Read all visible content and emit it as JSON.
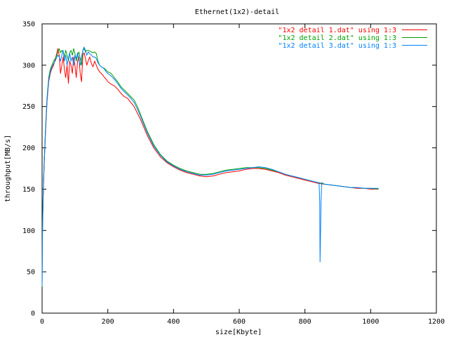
{
  "chart_data": {
    "type": "line",
    "title": "Ethernet(1x2)-detail",
    "xlabel": "size[Kbyte]",
    "ylabel": "throughput[MB/s]",
    "xlim": [
      0,
      1200
    ],
    "ylim": [
      0,
      350
    ],
    "xticks": [
      0,
      200,
      400,
      600,
      800,
      1000,
      1200
    ],
    "yticks": [
      0,
      50,
      100,
      150,
      200,
      250,
      300,
      350
    ],
    "xtick_labels": [
      "0",
      "200",
      "400",
      "600",
      "800",
      "1000",
      "1200"
    ],
    "ytick_labels": [
      "0",
      "50",
      "100",
      "150",
      "200",
      "250",
      "300",
      "350"
    ],
    "grid": false,
    "legend_position": "top-right",
    "series": [
      {
        "name": "\"1x2 detail 1.dat\" using 1:3",
        "color": "#ff0000",
        "x": [
          0,
          1,
          3,
          6,
          10,
          15,
          20,
          25,
          30,
          35,
          40,
          45,
          48,
          52,
          56,
          60,
          64,
          68,
          72,
          76,
          80,
          84,
          88,
          92,
          96,
          100,
          104,
          108,
          112,
          116,
          120,
          124,
          128,
          132,
          136,
          140,
          145,
          150,
          155,
          160,
          165,
          170,
          175,
          180,
          185,
          190,
          195,
          200,
          210,
          220,
          230,
          240,
          250,
          260,
          270,
          280,
          290,
          300,
          320,
          340,
          360,
          380,
          400,
          420,
          440,
          460,
          480,
          500,
          520,
          540,
          560,
          580,
          600,
          620,
          640,
          660,
          680,
          700,
          720,
          740,
          760,
          780,
          800,
          820,
          840,
          860,
          880,
          900,
          920,
          940,
          960,
          980,
          1000,
          1024
        ],
        "y": [
          35,
          95,
          135,
          175,
          215,
          255,
          280,
          290,
          296,
          300,
          307,
          315,
          320,
          312,
          290,
          300,
          310,
          295,
          285,
          300,
          278,
          305,
          300,
          290,
          310,
          300,
          285,
          305,
          310,
          290,
          280,
          312,
          315,
          308,
          300,
          305,
          310,
          302,
          298,
          305,
          300,
          295,
          292,
          290,
          288,
          285,
          283,
          280,
          277,
          275,
          271,
          266,
          262,
          260,
          255,
          250,
          242,
          234,
          215,
          200,
          189,
          182,
          177,
          173,
          170,
          168,
          166,
          165,
          166,
          168,
          170,
          171,
          172,
          174,
          175,
          175,
          174,
          172,
          170,
          167,
          165,
          163,
          161,
          159,
          157,
          156,
          155,
          154,
          153,
          152,
          151,
          151,
          150,
          150
        ]
      },
      {
        "name": "\"1x2 detail 2.dat\" using 1:3",
        "color": "#00a000",
        "x": [
          0,
          1,
          3,
          6,
          10,
          15,
          20,
          25,
          30,
          35,
          40,
          45,
          48,
          52,
          56,
          60,
          64,
          68,
          72,
          76,
          80,
          84,
          88,
          92,
          96,
          100,
          104,
          108,
          112,
          116,
          120,
          124,
          128,
          132,
          136,
          140,
          145,
          150,
          155,
          160,
          165,
          170,
          175,
          180,
          185,
          190,
          195,
          200,
          210,
          220,
          230,
          240,
          250,
          260,
          270,
          280,
          290,
          300,
          320,
          340,
          360,
          380,
          400,
          420,
          440,
          460,
          480,
          500,
          520,
          540,
          560,
          580,
          600,
          620,
          640,
          660,
          680,
          700,
          720,
          740,
          760,
          780,
          800,
          820,
          840,
          860,
          880,
          900,
          920,
          940,
          960,
          980,
          1000,
          1024
        ],
        "y": [
          32,
          92,
          138,
          180,
          220,
          260,
          285,
          295,
          300,
          305,
          308,
          312,
          316,
          320,
          315,
          318,
          316,
          310,
          318,
          312,
          305,
          315,
          318,
          312,
          320,
          314,
          305,
          312,
          316,
          308,
          300,
          318,
          320,
          316,
          318,
          318,
          317,
          316,
          315,
          316,
          314,
          305,
          300,
          298,
          297,
          296,
          294,
          292,
          290,
          285,
          280,
          274,
          270,
          266,
          262,
          258,
          250,
          240,
          220,
          204,
          192,
          184,
          179,
          175,
          172,
          170,
          168,
          168,
          169,
          171,
          173,
          174,
          175,
          176,
          176,
          176,
          175,
          173,
          171,
          168,
          166,
          164,
          162,
          160,
          158,
          156,
          155,
          154,
          153,
          152,
          152,
          151,
          151,
          150
        ]
      },
      {
        "name": "\"1x2 detail 3.dat\" using 1:3",
        "color": "#0080ff",
        "x": [
          0,
          1,
          3,
          6,
          10,
          15,
          20,
          25,
          30,
          35,
          40,
          45,
          48,
          52,
          56,
          60,
          64,
          68,
          72,
          76,
          80,
          84,
          88,
          92,
          96,
          100,
          104,
          108,
          112,
          116,
          120,
          124,
          128,
          132,
          136,
          140,
          145,
          150,
          155,
          160,
          165,
          170,
          175,
          180,
          185,
          190,
          195,
          200,
          210,
          220,
          230,
          240,
          250,
          260,
          270,
          280,
          290,
          300,
          320,
          340,
          360,
          380,
          400,
          420,
          440,
          460,
          480,
          500,
          520,
          540,
          560,
          580,
          600,
          620,
          640,
          660,
          680,
          700,
          720,
          740,
          760,
          780,
          800,
          820,
          830,
          840,
          843,
          845,
          846,
          847,
          849,
          851,
          855,
          860,
          880,
          900,
          920,
          940,
          960,
          980,
          1000,
          1024
        ],
        "y": [
          33,
          100,
          140,
          178,
          218,
          258,
          282,
          292,
          298,
          302,
          305,
          310,
          312,
          310,
          305,
          312,
          318,
          305,
          312,
          300,
          308,
          315,
          305,
          310,
          300,
          312,
          308,
          315,
          305,
          300,
          310,
          318,
          322,
          318,
          312,
          316,
          314,
          312,
          310,
          310,
          308,
          303,
          300,
          298,
          297,
          295,
          292,
          290,
          287,
          283,
          278,
          272,
          268,
          264,
          260,
          255,
          247,
          238,
          218,
          202,
          191,
          183,
          178,
          174,
          171,
          169,
          167,
          167,
          168,
          170,
          172,
          173,
          174,
          175,
          176,
          177,
          176,
          174,
          171,
          168,
          166,
          164,
          162,
          160,
          159,
          158,
          158,
          135,
          62,
          85,
          135,
          158,
          157,
          156,
          155,
          154,
          153,
          152,
          152,
          151,
          151,
          151
        ]
      }
    ]
  }
}
